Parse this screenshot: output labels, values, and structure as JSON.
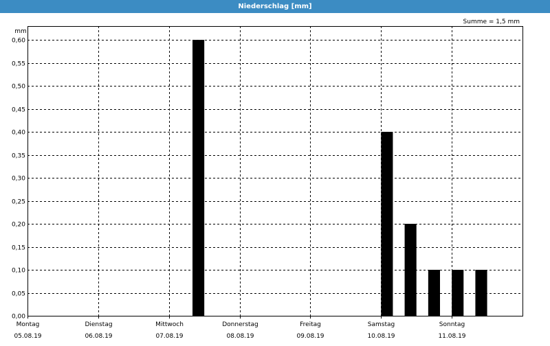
{
  "window": {
    "title": "Niederschlag [mm]"
  },
  "chart_data": {
    "type": "bar",
    "title": "Niederschlag [mm]",
    "summary_label": "Summe = 1,5 mm",
    "ylabel": "mm",
    "xlabel": "",
    "ylim": [
      0,
      0.63
    ],
    "y_ticks": [
      {
        "value": 0.0,
        "label": "0,00"
      },
      {
        "value": 0.05,
        "label": "0,05"
      },
      {
        "value": 0.1,
        "label": "0,10"
      },
      {
        "value": 0.15,
        "label": "0,15"
      },
      {
        "value": 0.2,
        "label": "0,20"
      },
      {
        "value": 0.25,
        "label": "0,25"
      },
      {
        "value": 0.3,
        "label": "0,30"
      },
      {
        "value": 0.35,
        "label": "0,35"
      },
      {
        "value": 0.4,
        "label": "0,40"
      },
      {
        "value": 0.45,
        "label": "0,45"
      },
      {
        "value": 0.5,
        "label": "0,50"
      },
      {
        "value": 0.55,
        "label": "0,55"
      },
      {
        "value": 0.6,
        "label": "0,60"
      }
    ],
    "x_range": [
      "2019-08-05T00:00",
      "2019-08-12T00:00"
    ],
    "days": [
      {
        "weekday": "Montag",
        "date": "05.08.19",
        "start": "2019-08-05T00:00"
      },
      {
        "weekday": "Dienstag",
        "date": "06.08.19",
        "start": "2019-08-06T00:00"
      },
      {
        "weekday": "Mittwoch",
        "date": "07.08.19",
        "start": "2019-08-07T00:00"
      },
      {
        "weekday": "Donnerstag",
        "date": "08.08.19",
        "start": "2019-08-08T00:00"
      },
      {
        "weekday": "Freitag",
        "date": "09.08.19",
        "start": "2019-08-09T00:00"
      },
      {
        "weekday": "Samstag",
        "date": "10.08.19",
        "start": "2019-08-10T00:00"
      },
      {
        "weekday": "Sonntag",
        "date": "11.08.19",
        "start": "2019-08-11T00:00"
      }
    ],
    "bars": [
      {
        "start": "2019-08-07T08:00",
        "end": "2019-08-07T12:00",
        "value": 0.6
      },
      {
        "start": "2019-08-10T00:00",
        "end": "2019-08-10T04:00",
        "value": 0.4
      },
      {
        "start": "2019-08-10T08:00",
        "end": "2019-08-10T12:00",
        "value": 0.2
      },
      {
        "start": "2019-08-10T16:00",
        "end": "2019-08-10T20:00",
        "value": 0.1
      },
      {
        "start": "2019-08-11T00:00",
        "end": "2019-08-11T04:00",
        "value": 0.1
      },
      {
        "start": "2019-08-11T08:00",
        "end": "2019-08-11T12:00",
        "value": 0.1
      }
    ],
    "grid": true,
    "grid_style": "dashed",
    "colors": {
      "bar": "#000000",
      "titlebar": "#3c8cc3",
      "grid": "#000000"
    }
  }
}
